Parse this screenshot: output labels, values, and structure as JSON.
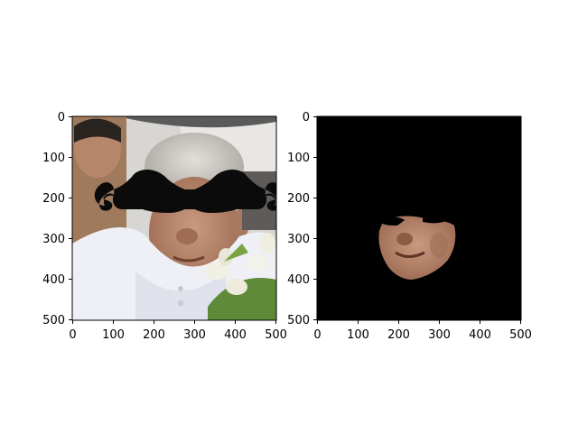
{
  "figure": {
    "panels": [
      {
        "name": "left-image-panel",
        "content": "photo of an elderly man with a large black cartoon mustache overlay covering the eyes; another man on the left; white flowers bottom right",
        "x_ticks": [
          "0",
          "100",
          "200",
          "300",
          "400",
          "500"
        ],
        "y_ticks": [
          "0",
          "100",
          "200",
          "300",
          "400",
          "500"
        ]
      },
      {
        "name": "right-image-panel",
        "content": "black background with segmented face region (lower face: nose, smile, chin) and a black mustache cut-out at the top",
        "x_ticks": [
          "0",
          "100",
          "200",
          "300",
          "400",
          "500"
        ],
        "y_ticks": [
          "0",
          "100",
          "200",
          "300",
          "400",
          "500"
        ]
      }
    ],
    "colors": {
      "background": "#ffffff",
      "axis": "#000000",
      "mask_background": "#000000",
      "mustache": "#0b0b0b",
      "skin": "#b88a72",
      "hair": "#c9c5c0",
      "shirt": "#eef0f5"
    }
  }
}
